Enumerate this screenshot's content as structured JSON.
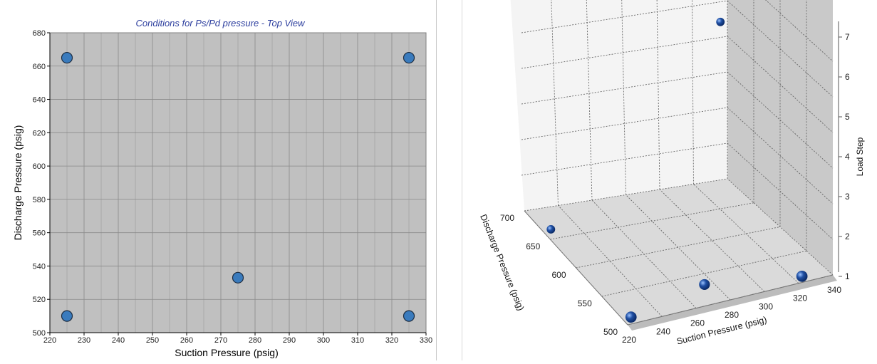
{
  "chart_data": [
    {
      "type": "scatter",
      "title": "Conditions for Ps/Pd pressure - Top View",
      "xlabel": "Suction Pressure (psig)",
      "ylabel": "Discharge Pressure (psig)",
      "xlim": [
        220,
        330
      ],
      "ylim": [
        500,
        680
      ],
      "xticks": [
        220,
        230,
        240,
        250,
        260,
        270,
        280,
        290,
        300,
        310,
        320,
        330
      ],
      "yticks": [
        500,
        520,
        540,
        560,
        580,
        600,
        620,
        640,
        660,
        680
      ],
      "grid": true,
      "colors": {
        "plot_bg": "#c0c0c0",
        "marker": "#3a7bbd",
        "marker_edge": "#1c2c40",
        "title": "#2c3e9e"
      },
      "points": [
        {
          "x": 225,
          "y": 665
        },
        {
          "x": 325,
          "y": 665
        },
        {
          "x": 275,
          "y": 533
        },
        {
          "x": 225,
          "y": 510
        },
        {
          "x": 325,
          "y": 510
        }
      ]
    },
    {
      "type": "scatter",
      "subtype": "3d",
      "xlabel": "Suction Pressure (psig)",
      "ylabel": "Discharge Pressure (psig)",
      "zlabel": "Load Step",
      "xlim": [
        220,
        340
      ],
      "ylim": [
        500,
        700
      ],
      "zlim": [
        1,
        7
      ],
      "xticks": [
        220,
        240,
        260,
        280,
        300,
        320,
        340
      ],
      "yticks": [
        500,
        550,
        600,
        650,
        700
      ],
      "zticks": [
        1,
        2,
        3,
        4,
        5,
        6,
        7
      ],
      "grid": true,
      "colors": {
        "marker": "#1f4fa3"
      },
      "points": [
        {
          "x": 225,
          "y": 510,
          "z": 1
        },
        {
          "x": 275,
          "y": 533,
          "z": 1
        },
        {
          "x": 325,
          "y": 510,
          "z": 1
        },
        {
          "x": 225,
          "y": 665,
          "z": 1
        },
        {
          "x": 325,
          "y": 665,
          "z": 6
        }
      ]
    }
  ]
}
